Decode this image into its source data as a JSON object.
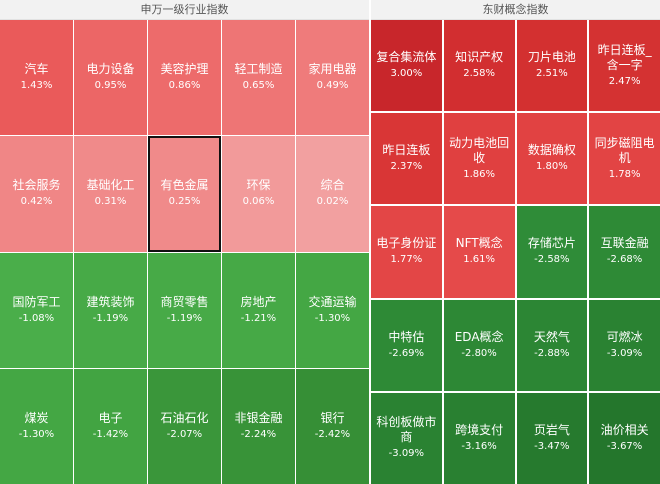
{
  "left": {
    "title": "申万一级行业指数",
    "tiles": [
      {
        "name": "汽车",
        "pct": "1.43%",
        "color": "#ea5a5a"
      },
      {
        "name": "电力设备",
        "pct": "0.95%",
        "color": "#ec6666"
      },
      {
        "name": "美容护理",
        "pct": "0.86%",
        "color": "#ed6b6b"
      },
      {
        "name": "轻工制造",
        "pct": "0.65%",
        "color": "#ee7575"
      },
      {
        "name": "家用电器",
        "pct": "0.49%",
        "color": "#ef7b7b"
      },
      {
        "name": "社会服务",
        "pct": "0.42%",
        "color": "#f08686"
      },
      {
        "name": "基础化工",
        "pct": "0.31%",
        "color": "#f08a8a"
      },
      {
        "name": "有色金属",
        "pct": "0.25%",
        "color": "#f08a8a",
        "selected": true
      },
      {
        "name": "环保",
        "pct": "0.06%",
        "color": "#f29a9a"
      },
      {
        "name": "综合",
        "pct": "0.02%",
        "color": "#f2a0a0"
      },
      {
        "name": "国防军工",
        "pct": "-1.08%",
        "color": "#4aae4a"
      },
      {
        "name": "建筑装饰",
        "pct": "-1.19%",
        "color": "#47aa47"
      },
      {
        "name": "商贸零售",
        "pct": "-1.19%",
        "color": "#47aa47"
      },
      {
        "name": "房地产",
        "pct": "-1.21%",
        "color": "#46a946"
      },
      {
        "name": "交通运输",
        "pct": "-1.30%",
        "color": "#44a744"
      },
      {
        "name": "煤炭",
        "pct": "-1.30%",
        "color": "#44a744"
      },
      {
        "name": "电子",
        "pct": "-1.42%",
        "color": "#42a442"
      },
      {
        "name": "石油石化",
        "pct": "-2.07%",
        "color": "#3a963a"
      },
      {
        "name": "非银金融",
        "pct": "-2.24%",
        "color": "#389338"
      },
      {
        "name": "银行",
        "pct": "-2.42%",
        "color": "#368f36"
      }
    ]
  },
  "right": {
    "title": "东财概念指数",
    "tiles": [
      {
        "name": "复合集流体",
        "pct": "3.00%",
        "color": "#c8262b"
      },
      {
        "name": "知识产权",
        "pct": "2.58%",
        "color": "#d22e30"
      },
      {
        "name": "刀片电池",
        "pct": "2.51%",
        "color": "#d33030"
      },
      {
        "name": "昨日连板_含一字",
        "pct": "2.47%",
        "color": "#d43232"
      },
      {
        "name": "昨日连板",
        "pct": "2.37%",
        "color": "#d93636"
      },
      {
        "name": "动力电池回收",
        "pct": "1.86%",
        "color": "#e04040"
      },
      {
        "name": "数据确权",
        "pct": "1.80%",
        "color": "#e14242"
      },
      {
        "name": "同步磁阻电机",
        "pct": "1.78%",
        "color": "#e24444"
      },
      {
        "name": "电子身份证",
        "pct": "1.77%",
        "color": "#e34646"
      },
      {
        "name": "NFT概念",
        "pct": "1.61%",
        "color": "#e54a4a"
      },
      {
        "name": "存储芯片",
        "pct": "-2.58%",
        "color": "#2f8c38"
      },
      {
        "name": "互联金融",
        "pct": "-2.68%",
        "color": "#2e8a36"
      },
      {
        "name": "中特估",
        "pct": "-2.69%",
        "color": "#2e8a36"
      },
      {
        "name": "EDA概念",
        "pct": "-2.80%",
        "color": "#2d8835"
      },
      {
        "name": "天然气",
        "pct": "-2.88%",
        "color": "#2c8634"
      },
      {
        "name": "可燃冰",
        "pct": "-3.09%",
        "color": "#2a8232"
      },
      {
        "name": "科创板做市商",
        "pct": "-3.09%",
        "color": "#2a8232"
      },
      {
        "name": "跨境支付",
        "pct": "-3.16%",
        "color": "#298031"
      },
      {
        "name": "页岩气",
        "pct": "-3.47%",
        "color": "#267a2e"
      },
      {
        "name": "油价相关",
        "pct": "-3.67%",
        "color": "#24762c"
      }
    ]
  }
}
